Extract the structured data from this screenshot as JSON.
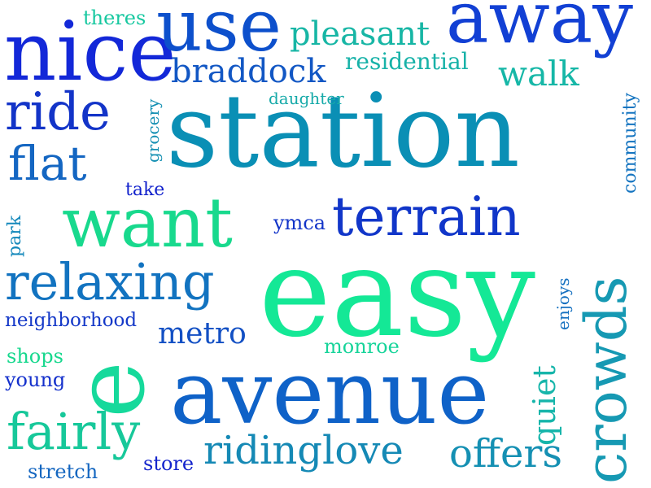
{
  "words": [
    {
      "text": "station",
      "color": "#0a8fb5"
    },
    {
      "text": "easy",
      "color": "#14e896"
    },
    {
      "text": "avenue",
      "color": "#0f62c8"
    },
    {
      "text": "nice",
      "color": "#1328d8"
    },
    {
      "text": "use",
      "color": "#0d50cc"
    },
    {
      "text": "away",
      "color": "#1240d4"
    },
    {
      "text": "want",
      "color": "#18d98d"
    },
    {
      "text": "terrain",
      "color": "#1136c9"
    },
    {
      "text": "relaxing",
      "color": "#1273c0"
    },
    {
      "text": "crowds",
      "color": "#1699b3"
    },
    {
      "text": "e",
      "color": "#16d99b"
    },
    {
      "text": "ride",
      "color": "#1334c8"
    },
    {
      "text": "flat",
      "color": "#1466c2"
    },
    {
      "text": "fairly",
      "color": "#17c89a"
    },
    {
      "text": "pleasant",
      "color": "#17b6a5"
    },
    {
      "text": "braddock",
      "color": "#1257c4"
    },
    {
      "text": "walk",
      "color": "#16b7a7"
    },
    {
      "text": "residential",
      "color": "#17b2a8"
    },
    {
      "text": "metro",
      "color": "#1350c4"
    },
    {
      "text": "ridinglove",
      "color": "#1589b5"
    },
    {
      "text": "offers",
      "color": "#1590b3"
    },
    {
      "text": "quiet",
      "color": "#16b5aa"
    },
    {
      "text": "neighborhood",
      "color": "#1438c8"
    },
    {
      "text": "theres",
      "color": "#17c8a0"
    },
    {
      "text": "daughter",
      "color": "#17aaa9"
    },
    {
      "text": "grocery",
      "color": "#1590b3"
    },
    {
      "text": "community",
      "color": "#1474c0"
    },
    {
      "text": "take",
      "color": "#1222cc"
    },
    {
      "text": "ymca",
      "color": "#1234c8"
    },
    {
      "text": "park",
      "color": "#1488bb"
    },
    {
      "text": "enjoys",
      "color": "#1570c0"
    },
    {
      "text": "monroe",
      "color": "#17d49a"
    },
    {
      "text": "shops",
      "color": "#18d88e"
    },
    {
      "text": "young",
      "color": "#1430cc"
    },
    {
      "text": "store",
      "color": "#1424cc"
    },
    {
      "text": "stretch",
      "color": "#1466c0"
    }
  ]
}
